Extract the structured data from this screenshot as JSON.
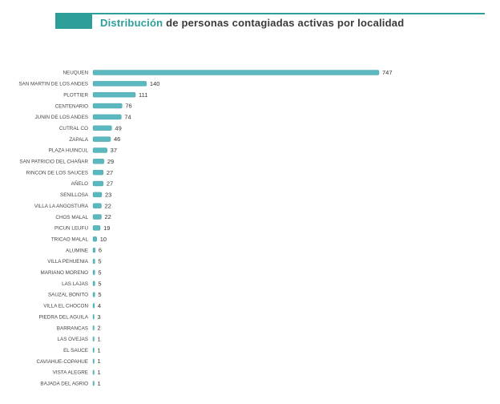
{
  "title": {
    "accent": "Distribución",
    "rest": "de personas contagiadas activas por localidad"
  },
  "colors": {
    "accent": "#2e9e99",
    "bar": "#5bb8be",
    "bar_dark": "#3f9ea6",
    "text": "#3a3a3a"
  },
  "chart_data": {
    "type": "bar",
    "orientation": "horizontal",
    "title": "Distribución de personas contagiadas activas por localidad",
    "categories": [
      "NEUQUEN",
      "SAN MARTIN DE LOS ANDES",
      "PLOTTIER",
      "CENTENARIO",
      "JUNIN DE LOS ANDES",
      "CUTRAL CO",
      "ZAPALA",
      "PLAZA HUINCUL",
      "SAN PATRICIO DEL CHAÑAR",
      "RINCON DE LOS SAUCES",
      "AÑELO",
      "SENILLOSA",
      "VILLA LA ANGOSTURA",
      "CHOS MALAL",
      "PICUN LEUFU",
      "TRICAO MALAL",
      "ALUMINE",
      "VILLA PEHUENIA",
      "MARIANO MORENO",
      "LAS LAJAS",
      "SAUZAL BONITO",
      "VILLA EL CHOCON",
      "PIEDRA DEL AGUILA",
      "BARRANCAS",
      "LAS OVEJAS",
      "EL SAUCE",
      "CAVIAHUE-COPAHUE",
      "VISTA ALEGRE",
      "BAJADA DEL AGRIO"
    ],
    "values": [
      747,
      140,
      111,
      76,
      74,
      49,
      46,
      37,
      29,
      27,
      27,
      23,
      22,
      22,
      19,
      10,
      6,
      5,
      5,
      5,
      5,
      4,
      3,
      2,
      1,
      1,
      1,
      1,
      1
    ],
    "xlabel": "",
    "ylabel": "",
    "xlim": [
      0,
      747
    ],
    "grid": false,
    "legend": "none"
  }
}
